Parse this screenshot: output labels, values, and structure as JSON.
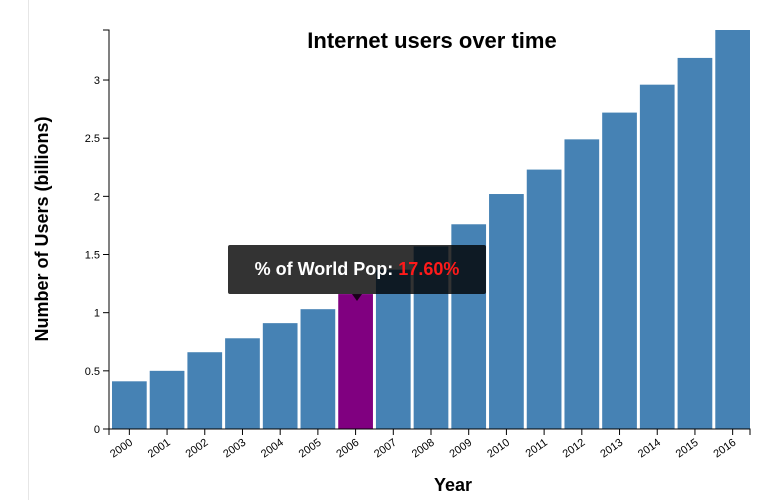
{
  "chart_data": {
    "type": "bar",
    "title": "Internet users over time",
    "xlabel": "Year",
    "ylabel": "Number of Users (billions)",
    "categories": [
      "2000",
      "2001",
      "2002",
      "2003",
      "2004",
      "2005",
      "2006",
      "2007",
      "2008",
      "2009",
      "2010",
      "2011",
      "2012",
      "2013",
      "2014",
      "2015",
      "2016"
    ],
    "values": [
      0.41,
      0.5,
      0.66,
      0.78,
      0.91,
      1.03,
      1.16,
      1.37,
      1.57,
      1.76,
      2.02,
      2.23,
      2.49,
      2.72,
      2.96,
      3.19,
      3.43
    ],
    "ylim": [
      0,
      3.43
    ],
    "yticks": [
      "0",
      "0.5",
      "1",
      "1.5",
      "2",
      "2.5",
      "3"
    ],
    "highlight_index": 6,
    "bar_color": "#4682b4",
    "highlight_color": "#800080",
    "grid": false
  },
  "tooltip": {
    "label": "% of World Pop:",
    "value": "17.60%",
    "value_color": "#ff1a1a"
  }
}
